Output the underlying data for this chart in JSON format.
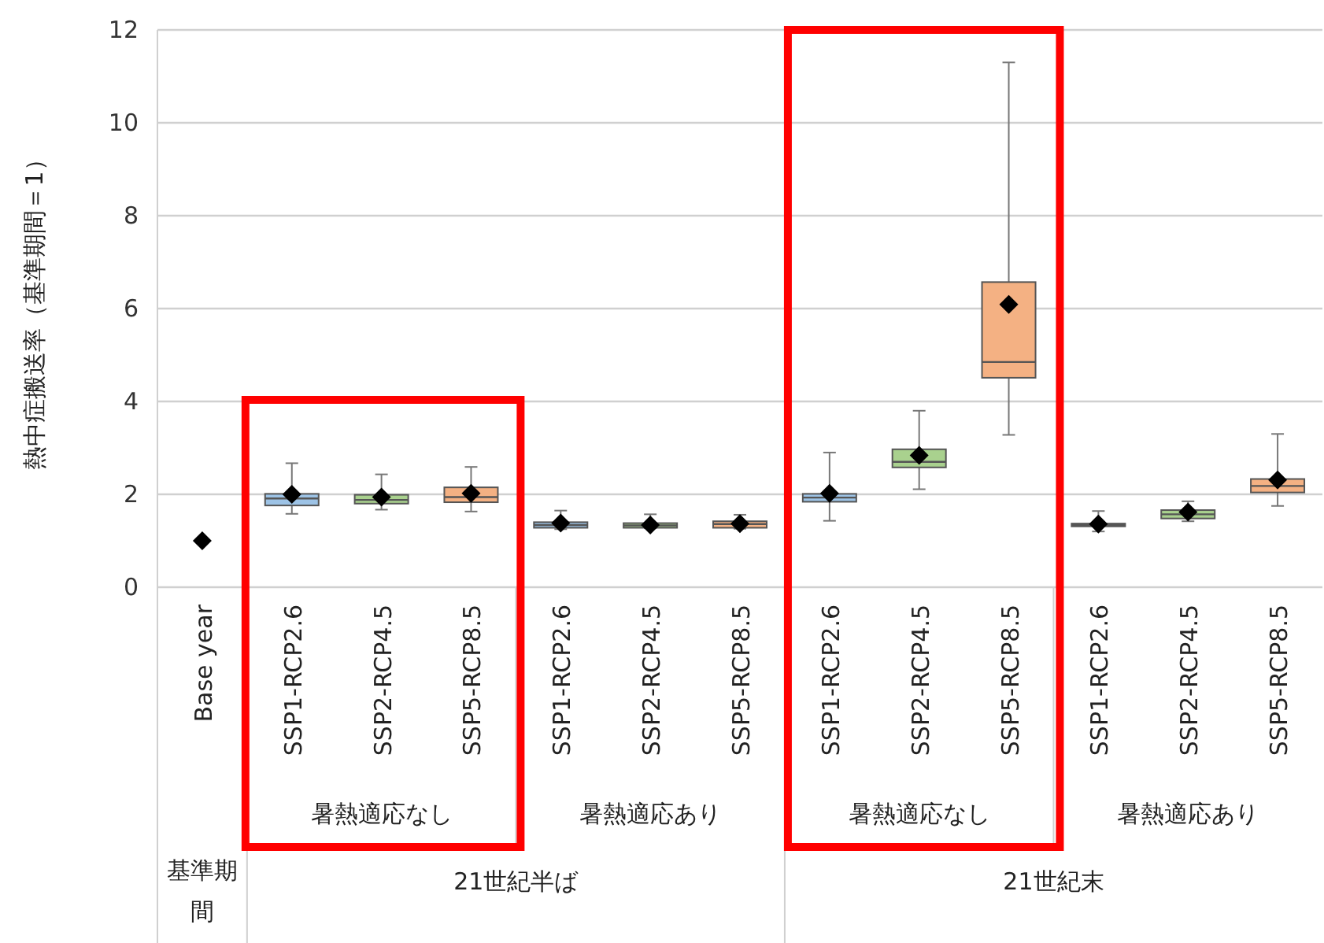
{
  "chart_data": {
    "type": "box",
    "ylabel": "熱中症搬送率（基準期間＝1）",
    "categories": [
      "Base year",
      "SSP1-RCP2.6",
      "SSP2-RCP4.5",
      "SSP5-RCP8.5",
      "SSP1-RCP2.6",
      "SSP2-RCP4.5",
      "SSP5-RCP8.5",
      "SSP1-RCP2.6",
      "SSP2-RCP4.5",
      "SSP5-RCP8.5",
      "SSP1-RCP2.6",
      "SSP2-RCP4.5",
      "SSP5-RCP8.5"
    ],
    "colors": [
      null,
      "#9dc3e6",
      "#a9d18e",
      "#f4b183",
      "#9dc3e6",
      "#a9d18e",
      "#f4b183",
      "#9dc3e6",
      "#a9d18e",
      "#f4b183",
      "#9dc3e6",
      "#a9d18e",
      "#f4b183"
    ],
    "boxes": [
      null,
      {
        "low": 1.58,
        "q1": 1.76,
        "median": 1.91,
        "q3": 2.01,
        "high": 2.67,
        "mean": 2.0
      },
      {
        "low": 1.67,
        "q1": 1.8,
        "median": 1.88,
        "q3": 1.99,
        "high": 2.43,
        "mean": 1.94
      },
      {
        "low": 1.63,
        "q1": 1.83,
        "median": 1.94,
        "q3": 2.15,
        "high": 2.59,
        "mean": 2.02
      },
      {
        "low": 1.25,
        "q1": 1.28,
        "median": 1.34,
        "q3": 1.4,
        "high": 1.65,
        "mean": 1.38
      },
      {
        "low": 1.27,
        "q1": 1.28,
        "median": 1.33,
        "q3": 1.38,
        "high": 1.57,
        "mean": 1.34
      },
      {
        "low": 1.26,
        "q1": 1.28,
        "median": 1.36,
        "q3": 1.42,
        "high": 1.56,
        "mean": 1.37
      },
      {
        "low": 1.43,
        "q1": 1.84,
        "median": 1.93,
        "q3": 2.01,
        "high": 2.9,
        "mean": 2.02
      },
      {
        "low": 2.11,
        "q1": 2.58,
        "median": 2.7,
        "q3": 2.97,
        "high": 3.8,
        "mean": 2.84
      },
      {
        "low": 3.28,
        "q1": 4.51,
        "median": 4.85,
        "q3": 6.57,
        "high": 11.3,
        "mean": 6.09
      },
      {
        "low": 1.2,
        "q1": 1.31,
        "median": 1.34,
        "q3": 1.37,
        "high": 1.64,
        "mean": 1.36
      },
      {
        "low": 1.42,
        "q1": 1.48,
        "median": 1.57,
        "q3": 1.66,
        "high": 1.85,
        "mean": 1.62
      },
      {
        "low": 1.75,
        "q1": 2.04,
        "median": 2.18,
        "q3": 2.33,
        "high": 3.3,
        "mean": 2.31
      }
    ],
    "ylim": [
      0,
      12
    ],
    "yticks": [
      0,
      2,
      4,
      6,
      8,
      10,
      12
    ],
    "grid": "y",
    "marker": "diamond",
    "series": [
      {
        "type": "scatter",
        "x": [
          "Base year"
        ],
        "values": [
          1.0
        ],
        "color": "#000000"
      }
    ],
    "annotations": [
      "暑熱適応なし",
      "暑熱適応あり",
      "暑熱適応なし",
      "暑熱適応あり",
      "基準期間",
      "21世紀半ば",
      "21世紀末"
    ]
  }
}
